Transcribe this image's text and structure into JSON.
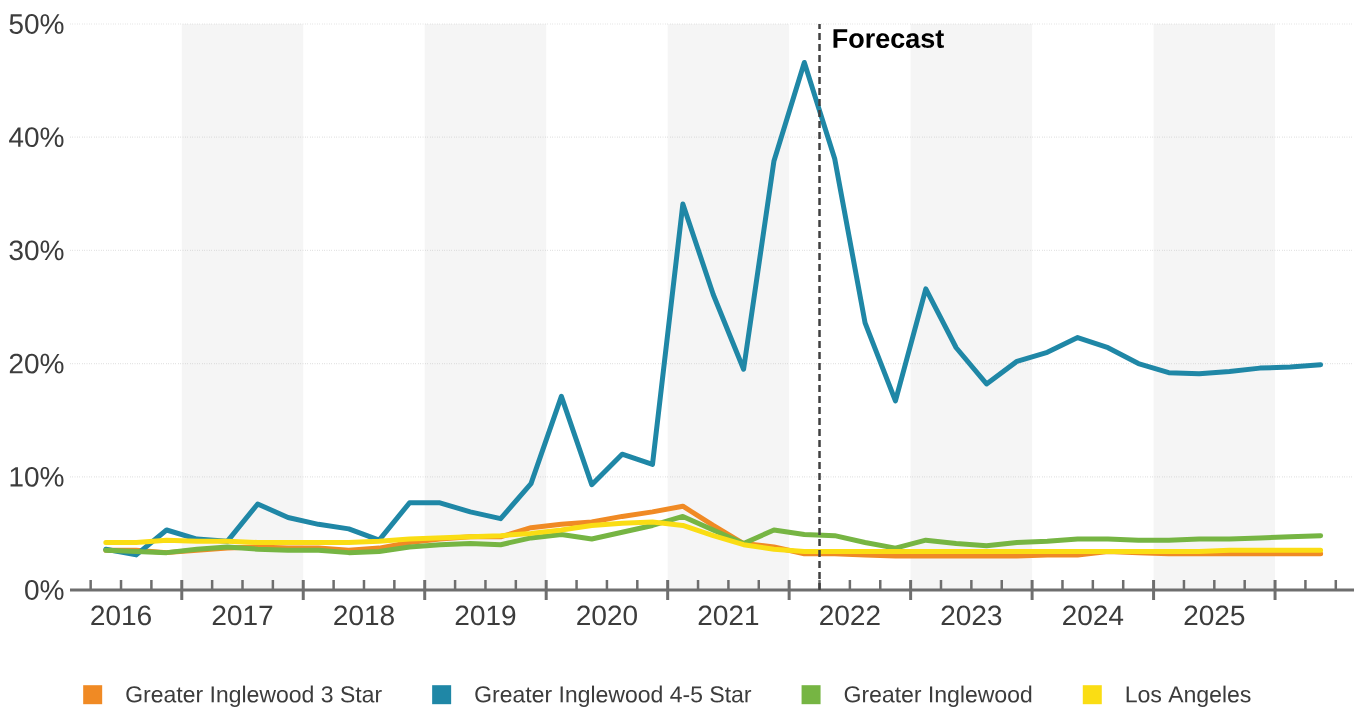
{
  "chart_data": {
    "type": "line",
    "x": [
      2016.375,
      2016.625,
      2016.875,
      2017.125,
      2017.375,
      2017.625,
      2017.875,
      2018.125,
      2018.375,
      2018.625,
      2018.875,
      2019.125,
      2019.375,
      2019.625,
      2019.875,
      2020.125,
      2020.375,
      2020.625,
      2020.875,
      2021.125,
      2021.375,
      2021.625,
      2021.875,
      2022.125,
      2022.375,
      2022.625,
      2022.875,
      2023.125,
      2023.375,
      2023.625,
      2023.875,
      2024.125,
      2024.375,
      2024.625,
      2024.875,
      2025.125,
      2025.375,
      2025.625,
      2025.875,
      2026.125,
      2026.375
    ],
    "xlim": [
      2016.08,
      2026.65
    ],
    "xticks": [
      {
        "value": 2016.25,
        "label": null
      },
      {
        "value": 2016.5,
        "label": "2016"
      },
      {
        "value": 2016.75,
        "label": null
      },
      {
        "value": 2017,
        "label": null
      },
      {
        "value": 2017.25,
        "label": null
      },
      {
        "value": 2017.5,
        "label": "2017"
      },
      {
        "value": 2017.75,
        "label": null
      },
      {
        "value": 2018,
        "label": null
      },
      {
        "value": 2018.25,
        "label": null
      },
      {
        "value": 2018.5,
        "label": "2018"
      },
      {
        "value": 2018.75,
        "label": null
      },
      {
        "value": 2019,
        "label": null
      },
      {
        "value": 2019.25,
        "label": null
      },
      {
        "value": 2019.5,
        "label": "2019"
      },
      {
        "value": 2019.75,
        "label": null
      },
      {
        "value": 2020,
        "label": null
      },
      {
        "value": 2020.25,
        "label": null
      },
      {
        "value": 2020.5,
        "label": "2020"
      },
      {
        "value": 2020.75,
        "label": null
      },
      {
        "value": 2021,
        "label": null
      },
      {
        "value": 2021.25,
        "label": null
      },
      {
        "value": 2021.5,
        "label": "2021"
      },
      {
        "value": 2021.75,
        "label": null
      },
      {
        "value": 2022,
        "label": null
      },
      {
        "value": 2022.25,
        "label": null
      },
      {
        "value": 2022.5,
        "label": "2022"
      },
      {
        "value": 2022.75,
        "label": null
      },
      {
        "value": 2023,
        "label": null
      },
      {
        "value": 2023.25,
        "label": null
      },
      {
        "value": 2023.5,
        "label": "2023"
      },
      {
        "value": 2023.75,
        "label": null
      },
      {
        "value": 2024,
        "label": null
      },
      {
        "value": 2024.25,
        "label": null
      },
      {
        "value": 2024.5,
        "label": "2024"
      },
      {
        "value": 2024.75,
        "label": null
      },
      {
        "value": 2025,
        "label": null
      },
      {
        "value": 2025.25,
        "label": null
      },
      {
        "value": 2025.5,
        "label": "2025"
      },
      {
        "value": 2025.75,
        "label": null
      },
      {
        "value": 2026,
        "label": null
      },
      {
        "value": 2026.25,
        "label": null
      },
      {
        "value": 2026.5,
        "label": null
      }
    ],
    "ylim": [
      0,
      50
    ],
    "yticks": [
      {
        "value": 0,
        "label": "0%"
      },
      {
        "value": 10,
        "label": "10%"
      },
      {
        "value": 20,
        "label": "20%"
      },
      {
        "value": 30,
        "label": "30%"
      },
      {
        "value": 40,
        "label": "40%"
      },
      {
        "value": 50,
        "label": "50%"
      }
    ],
    "grid": "y",
    "legend": "bottom",
    "series": [
      {
        "name": "Greater Inglewood 3 Star",
        "color": "#f08a24",
        "values": [
          3.5,
          3.5,
          3.3,
          3.5,
          3.7,
          3.8,
          3.7,
          3.7,
          3.5,
          3.7,
          4.2,
          4.5,
          4.7,
          4.7,
          5.5,
          5.8,
          6.0,
          6.5,
          6.9,
          7.4,
          5.7,
          4.1,
          3.8,
          3.2,
          3.2,
          3.1,
          3.0,
          3.0,
          3.0,
          3.0,
          3.0,
          3.1,
          3.1,
          3.4,
          3.3,
          3.2,
          3.2,
          3.2,
          3.2,
          3.2,
          3.2
        ]
      },
      {
        "name": "Greater Inglewood 4-5 Star",
        "color": "#1f87a6",
        "values": [
          3.6,
          3.1,
          5.3,
          4.5,
          4.3,
          7.6,
          6.4,
          5.8,
          5.4,
          4.4,
          7.7,
          7.7,
          6.9,
          6.3,
          9.4,
          17.1,
          9.3,
          12.0,
          11.1,
          34.1,
          26.1,
          19.5,
          37.9,
          46.6,
          38.1,
          23.6,
          16.7,
          26.6,
          21.4,
          18.2,
          20.2,
          21.0,
          22.3,
          21.4,
          20.0,
          19.2,
          19.1,
          19.3,
          19.6,
          19.7,
          19.9
        ]
      },
      {
        "name": "Greater Inglewood",
        "color": "#76b543",
        "values": [
          3.5,
          3.4,
          3.3,
          3.6,
          3.8,
          3.6,
          3.5,
          3.5,
          3.3,
          3.4,
          3.8,
          4.0,
          4.1,
          4.0,
          4.6,
          4.9,
          4.5,
          5.1,
          5.7,
          6.5,
          5.3,
          4.1,
          5.3,
          4.9,
          4.8,
          4.2,
          3.7,
          4.4,
          4.1,
          3.9,
          4.2,
          4.3,
          4.5,
          4.5,
          4.4,
          4.4,
          4.5,
          4.5,
          4.6,
          4.7,
          4.8
        ]
      },
      {
        "name": "Los Angeles",
        "color": "#fadd14",
        "values": [
          4.2,
          4.2,
          4.4,
          4.3,
          4.3,
          4.2,
          4.2,
          4.2,
          4.2,
          4.3,
          4.5,
          4.6,
          4.7,
          4.8,
          5.0,
          5.3,
          5.7,
          5.9,
          6.0,
          5.7,
          4.8,
          4.0,
          3.6,
          3.4,
          3.4,
          3.4,
          3.4,
          3.4,
          3.4,
          3.4,
          3.4,
          3.4,
          3.4,
          3.4,
          3.4,
          3.4,
          3.4,
          3.5,
          3.5,
          3.5,
          3.5
        ]
      }
    ],
    "ref_lines": [
      {
        "axis": "x",
        "value": 2022.25,
        "label": "Forecast",
        "color": "#404040",
        "line_style": "dashed"
      }
    ],
    "bands": [
      {
        "axis": "x",
        "from": 2017,
        "to": 2018,
        "color": "#f5f5f5"
      },
      {
        "axis": "x",
        "from": 2019,
        "to": 2020,
        "color": "#f5f5f5"
      },
      {
        "axis": "x",
        "from": 2021,
        "to": 2022,
        "color": "#f5f5f5"
      },
      {
        "axis": "x",
        "from": 2023,
        "to": 2024,
        "color": "#f5f5f5"
      },
      {
        "axis": "x",
        "from": 2025,
        "to": 2026,
        "color": "#f5f5f5"
      }
    ]
  }
}
